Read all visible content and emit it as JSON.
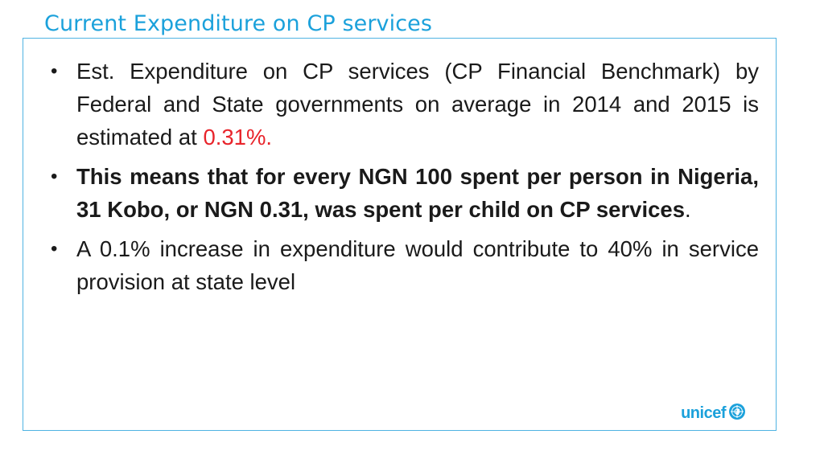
{
  "slide": {
    "title": "Current Expenditure on CP services",
    "bullets": [
      {
        "text_before": "Est. Expenditure on CP services (CP Financial Benchmark) by Federal and State governments on average in 2014 and 2015 is estimated at ",
        "highlight": "0.31%."
      },
      {
        "bold_text": "This means that for every NGN 100 spent per person in Nigeria, 31 Kobo, or NGN 0.31, was spent per child on CP services",
        "text_after": "."
      },
      {
        "text": "A 0.1% increase in expenditure would contribute to 40% in service provision at state level"
      }
    ],
    "bullet_glyph": "•",
    "logo": {
      "text": "unicef",
      "icon": "unicef-emblem-icon",
      "color": "#1ba1db"
    },
    "colors": {
      "title": "#1ba1db",
      "border": "#4fb3e2",
      "highlight": "#e8242b"
    }
  }
}
